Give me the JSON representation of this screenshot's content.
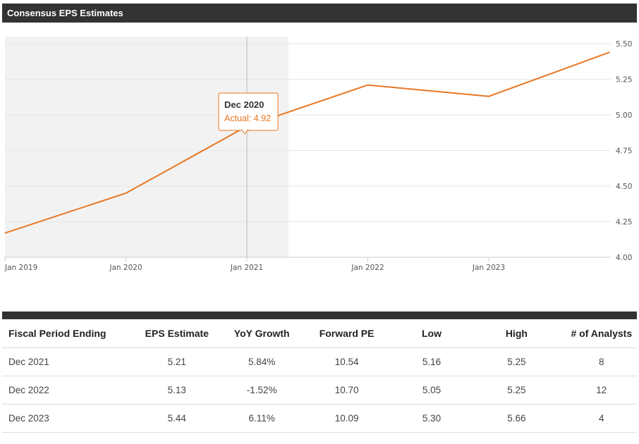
{
  "header": {
    "title": "Consensus EPS Estimates"
  },
  "chart_data": {
    "type": "line",
    "title": "Consensus EPS Estimates",
    "x_tick_labels": [
      "Jan 2019",
      "Jan 2020",
      "Jan 2021",
      "Jan 2022",
      "Jan 2023"
    ],
    "y_tick_labels": [
      "4.00",
      "4.25",
      "4.50",
      "4.75",
      "5.00",
      "5.25",
      "5.50"
    ],
    "ylim": [
      4.0,
      5.5
    ],
    "series": [
      {
        "name": "EPS",
        "color": "#e87722",
        "points": [
          {
            "x": "Dec 2018",
            "y": 4.17
          },
          {
            "x": "Dec 2019",
            "y": 4.45
          },
          {
            "x": "Dec 2020",
            "y": 4.92
          },
          {
            "x": "Dec 2021",
            "y": 5.21
          },
          {
            "x": "Dec 2022",
            "y": 5.13
          },
          {
            "x": "Dec 2023",
            "y": 5.44
          }
        ]
      }
    ],
    "actual_shaded_through": "Dec 2020",
    "tooltip": {
      "date": "Dec 2020",
      "label": "Actual: 4.92",
      "value": 4.92
    }
  },
  "table": {
    "headers": [
      "Fiscal Period Ending",
      "EPS Estimate",
      "YoY Growth",
      "Forward PE",
      "Low",
      "High",
      "# of Analysts"
    ],
    "rows": [
      [
        "Dec 2021",
        "5.21",
        "5.84%",
        "10.54",
        "5.16",
        "5.25",
        "8"
      ],
      [
        "Dec 2022",
        "5.13",
        "-1.52%",
        "10.70",
        "5.05",
        "5.25",
        "12"
      ],
      [
        "Dec 2023",
        "5.44",
        "6.11%",
        "10.09",
        "5.30",
        "5.66",
        "4"
      ]
    ]
  }
}
